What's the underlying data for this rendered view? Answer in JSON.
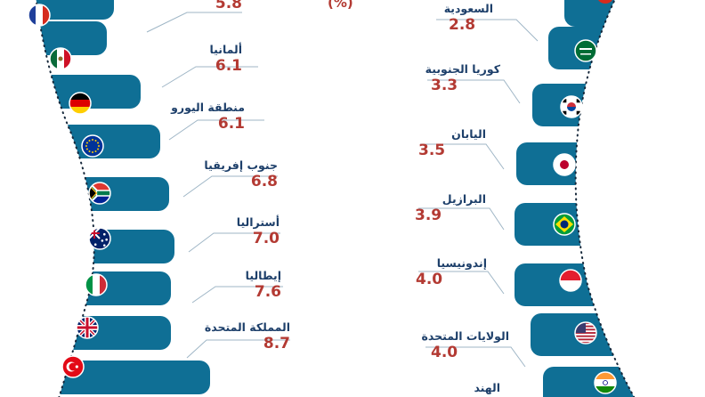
{
  "header": {
    "fragment": "(%)"
  },
  "colors": {
    "tab": "#0f6f95",
    "value": "#b33a33",
    "label": "#1d3f6a",
    "line": "#9fb6c6",
    "arc": "#16283b"
  },
  "left": [
    {
      "name": "",
      "value": "5.8",
      "flag": "france-flag-icon"
    },
    {
      "name": "ألمانيا",
      "value": "6.1",
      "flag": "mexico-flag-icon"
    },
    {
      "name": "منطقة اليورو",
      "value": "6.1",
      "flag": "germany-flag-icon"
    },
    {
      "name": "جنوب إفريقيا",
      "value": "6.8",
      "flag": "eu-flag-icon"
    },
    {
      "name": "أستراليا",
      "value": "7.0",
      "flag": "south-africa-flag-icon"
    },
    {
      "name": "إيطاليا",
      "value": "7.6",
      "flag": "australia-flag-icon"
    },
    {
      "name": "المملكة المتحدة",
      "value": "8.7",
      "flag": "italy-flag-icon"
    }
  ],
  "left_flags_extra": [
    "uk-flag-icon",
    "turkey-flag-icon"
  ],
  "right": [
    {
      "name": "السعودية",
      "value": "2.8",
      "flag": "saudi-flag-icon"
    },
    {
      "name": "كوريا الجنوبية",
      "value": "3.3",
      "flag": "south-korea-flag-icon"
    },
    {
      "name": "اليابان",
      "value": "3.5",
      "flag": "japan-flag-icon"
    },
    {
      "name": "البرازيل",
      "value": "3.9",
      "flag": "brazil-flag-icon"
    },
    {
      "name": "إندونيسيا",
      "value": "4.0",
      "flag": "indonesia-flag-icon"
    },
    {
      "name": "الولايات المتحدة",
      "value": "4.0",
      "flag": "usa-flag-icon"
    },
    {
      "name": "الهند",
      "value": "",
      "flag": "india-flag-icon"
    }
  ]
}
